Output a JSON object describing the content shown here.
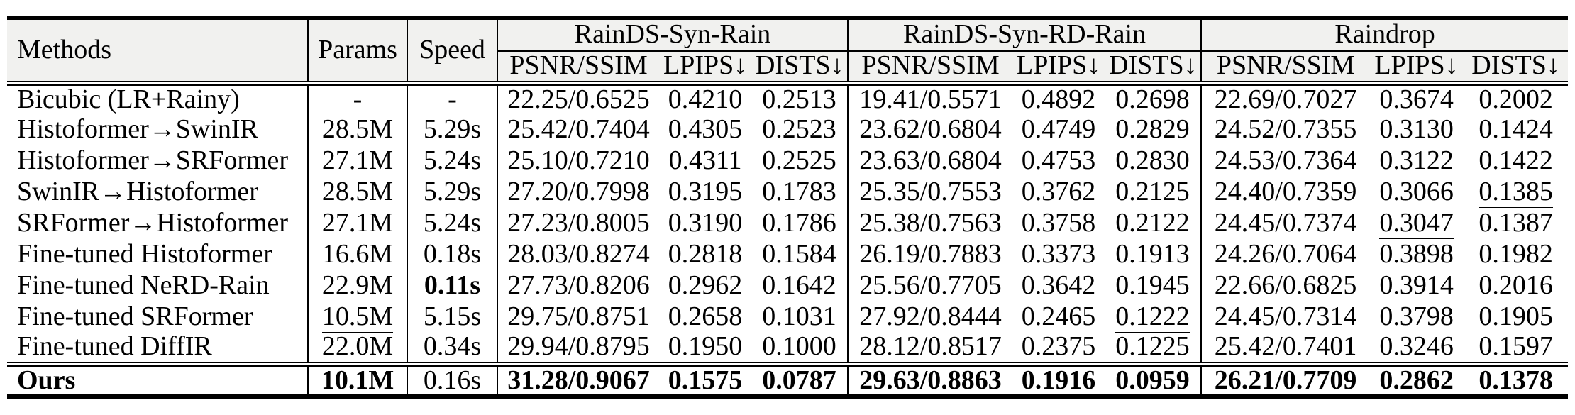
{
  "colors": {
    "page_bg": "#ffffff",
    "header_bg": "#f1f1ef",
    "rule": "#000000",
    "text": "#000000"
  },
  "table": {
    "headers": {
      "methods": "Methods",
      "params": "Params",
      "speed": "Speed",
      "groups": [
        {
          "name": "RainDS-Syn-Rain",
          "metrics": [
            "PSNR/SSIM",
            "LPIPS↓",
            "DISTS↓"
          ]
        },
        {
          "name": "RainDS-Syn-RD-Rain",
          "metrics": [
            "PSNR/SSIM",
            "LPIPS↓",
            "DISTS↓"
          ]
        },
        {
          "name": "Raindrop",
          "metrics": [
            "PSNR/SSIM",
            "LPIPS↓",
            "DISTS↓"
          ]
        }
      ]
    },
    "rows": [
      {
        "method": {
          "t": "Bicubic (LR+Rainy)"
        },
        "params": {
          "t": "-"
        },
        "speed": {
          "t": "-"
        },
        "cells": [
          {
            "t": "22.25/0.6525"
          },
          {
            "t": "0.4210"
          },
          {
            "t": "0.2513"
          },
          {
            "t": "19.41/0.5571"
          },
          {
            "t": "0.4892"
          },
          {
            "t": "0.2698"
          },
          {
            "t": "22.69/0.7027"
          },
          {
            "t": "0.3674"
          },
          {
            "t": "0.2002"
          }
        ]
      },
      {
        "method": {
          "t": "Histoformer→SwinIR"
        },
        "params": {
          "t": "28.5M"
        },
        "speed": {
          "t": "5.29s"
        },
        "cells": [
          {
            "t": "25.42/0.7404"
          },
          {
            "t": "0.4305"
          },
          {
            "t": "0.2523"
          },
          {
            "t": "23.62/0.6804"
          },
          {
            "t": "0.4749"
          },
          {
            "t": "0.2829"
          },
          {
            "t": "24.52/0.7355"
          },
          {
            "t": "0.3130"
          },
          {
            "t": "0.1424"
          }
        ]
      },
      {
        "method": {
          "t": "Histoformer→SRFormer"
        },
        "params": {
          "t": "27.1M"
        },
        "speed": {
          "t": "5.24s"
        },
        "cells": [
          {
            "t": "25.10/0.7210"
          },
          {
            "t": "0.4311"
          },
          {
            "t": "0.2525"
          },
          {
            "t": "23.63/0.6804"
          },
          {
            "t": "0.4753"
          },
          {
            "t": "0.2830"
          },
          {
            "t": "24.53/0.7364"
          },
          {
            "t": "0.3122"
          },
          {
            "t": "0.1422"
          }
        ]
      },
      {
        "method": {
          "t": "SwinIR→Histoformer"
        },
        "params": {
          "t": "28.5M"
        },
        "speed": {
          "t": "5.29s"
        },
        "cells": [
          {
            "t": "27.20/0.7998"
          },
          {
            "t": "0.3195"
          },
          {
            "t": "0.1783"
          },
          {
            "t": "25.35/0.7553"
          },
          {
            "t": "0.3762"
          },
          {
            "t": "0.2125"
          },
          {
            "t": "24.40/0.7359"
          },
          {
            "t": "0.3066"
          },
          {
            "t": "0.1385",
            "s": "u"
          }
        ]
      },
      {
        "method": {
          "t": "SRFormer→Histoformer"
        },
        "params": {
          "t": "27.1M"
        },
        "speed": {
          "t": "5.24s"
        },
        "cells": [
          {
            "t": "27.23/0.8005"
          },
          {
            "t": "0.3190"
          },
          {
            "t": "0.1786"
          },
          {
            "t": "25.38/0.7563"
          },
          {
            "t": "0.3758"
          },
          {
            "t": "0.2122"
          },
          {
            "t": "24.45/0.7374"
          },
          {
            "t": "0.3047",
            "s": "u"
          },
          {
            "t": "0.1387"
          }
        ]
      },
      {
        "method": {
          "t": "Fine-tuned Histoformer"
        },
        "params": {
          "t": "16.6M"
        },
        "speed": {
          "t": "0.18s"
        },
        "cells": [
          {
            "t": "28.03/0.8274"
          },
          {
            "t": "0.2818"
          },
          {
            "t": "0.1584"
          },
          {
            "t": "26.19/0.7883"
          },
          {
            "t": "0.3373"
          },
          {
            "t": "0.1913"
          },
          {
            "t": "24.26/0.7064"
          },
          {
            "t": "0.3898"
          },
          {
            "t": "0.1982"
          }
        ]
      },
      {
        "method": {
          "t": "Fine-tuned NeRD-Rain"
        },
        "params": {
          "t": "22.9M"
        },
        "speed": {
          "t": "0.11s",
          "s": "b"
        },
        "cells": [
          {
            "t": "27.73/0.8206"
          },
          {
            "t": "0.2962"
          },
          {
            "t": "0.1642"
          },
          {
            "t": "25.56/0.7705"
          },
          {
            "t": "0.3642"
          },
          {
            "t": "0.1945"
          },
          {
            "t": "22.66/0.6825"
          },
          {
            "t": "0.3914"
          },
          {
            "t": "0.2016"
          }
        ]
      },
      {
        "method": {
          "t": "Fine-tuned SRFormer"
        },
        "params": {
          "t": "10.5M",
          "s": "u"
        },
        "speed": {
          "t": "5.15s"
        },
        "cells": [
          {
            "t": "29.75/0.8751"
          },
          {
            "t": "0.2658"
          },
          {
            "t": "0.1031"
          },
          {
            "t": "27.92/0.8444"
          },
          {
            "t": "0.2465"
          },
          {
            "t": "0.1222",
            "s": "u"
          },
          {
            "t": "24.45/0.7314"
          },
          {
            "t": "0.3798"
          },
          {
            "t": "0.1905"
          }
        ]
      },
      {
        "method": {
          "t": "Fine-tuned DiffIR"
        },
        "params": {
          "t": "22.0M"
        },
        "speed": {
          "t": "0.34s"
        },
        "cells": [
          {
            "t": "29.94/0.8795",
            "s": "u"
          },
          {
            "t": "0.1950",
            "s": "u"
          },
          {
            "t": "0.1000",
            "s": "u"
          },
          {
            "t": "28.12/0.8517",
            "s": "u"
          },
          {
            "t": "0.2375",
            "s": "u"
          },
          {
            "t": "0.1225"
          },
          {
            "t": "25.42/0.7401",
            "s": "u"
          },
          {
            "t": "0.3246"
          },
          {
            "t": "0.1597"
          }
        ]
      },
      {
        "is_ours": true,
        "method": {
          "t": "Ours",
          "s": "b"
        },
        "params": {
          "t": "10.1M",
          "s": "b"
        },
        "speed": {
          "t": "0.16s",
          "s": "u"
        },
        "cells": [
          {
            "t": "31.28/0.9067",
            "s": "b"
          },
          {
            "t": "0.1575",
            "s": "b"
          },
          {
            "t": "0.0787",
            "s": "b"
          },
          {
            "t": "29.63/0.8863",
            "s": "b"
          },
          {
            "t": "0.1916",
            "s": "b"
          },
          {
            "t": "0.0959",
            "s": "b"
          },
          {
            "t": "26.21/0.7709",
            "s": "b"
          },
          {
            "t": "0.2862",
            "s": "b"
          },
          {
            "t": "0.1378",
            "s": "b"
          }
        ]
      }
    ]
  }
}
